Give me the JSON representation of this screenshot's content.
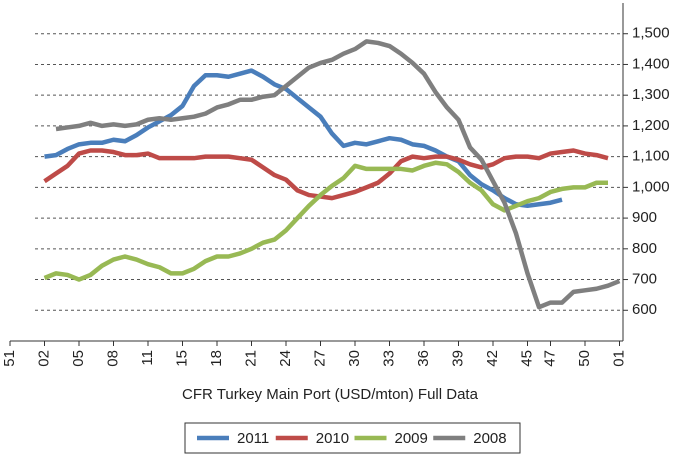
{
  "chart_data": {
    "type": "line",
    "x_label": "CFR Turkey Main Port (USD/mton) Full Data",
    "categories": [
      "51",
      null,
      null,
      "02",
      null,
      null,
      "05",
      null,
      null,
      "08",
      null,
      null,
      "11",
      null,
      null,
      "15",
      null,
      null,
      "18",
      null,
      null,
      "21",
      null,
      null,
      "24",
      null,
      null,
      "27",
      null,
      null,
      "30",
      null,
      null,
      "33",
      null,
      null,
      "36",
      null,
      null,
      "39",
      null,
      null,
      "42",
      null,
      null,
      "45",
      null,
      "47",
      null,
      null,
      "50",
      null,
      null,
      "01"
    ],
    "series": [
      {
        "name": "2011",
        "color": "#4a7ebb",
        "values": [
          null,
          null,
          null,
          1100,
          1105,
          1125,
          1140,
          1145,
          1145,
          1155,
          1150,
          1170,
          1195,
          1215,
          1235,
          1265,
          1330,
          1365,
          1365,
          1360,
          1370,
          1380,
          1360,
          1335,
          1320,
          1290,
          1260,
          1230,
          1175,
          1135,
          1145,
          1140,
          1150,
          1160,
          1155,
          1140,
          1135,
          1120,
          1100,
          1085,
          1040,
          1010,
          990,
          965,
          945,
          940,
          945,
          950,
          960,
          null,
          null,
          null,
          null,
          null
        ]
      },
      {
        "name": "2010",
        "color": "#be4b48",
        "values": [
          null,
          null,
          null,
          1020,
          1045,
          1070,
          1110,
          1120,
          1120,
          1115,
          1105,
          1105,
          1110,
          1095,
          1095,
          1095,
          1095,
          1100,
          1100,
          1100,
          1095,
          1090,
          1065,
          1040,
          1025,
          990,
          975,
          970,
          965,
          975,
          985,
          1000,
          1015,
          1045,
          1085,
          1100,
          1095,
          1100,
          1100,
          1090,
          1075,
          1065,
          1075,
          1095,
          1100,
          1100,
          1095,
          1110,
          1115,
          1120,
          1110,
          1105,
          1095,
          null
        ]
      },
      {
        "name": "2009",
        "color": "#98b954",
        "values": [
          null,
          null,
          null,
          705,
          720,
          715,
          700,
          715,
          745,
          765,
          775,
          765,
          750,
          740,
          720,
          720,
          735,
          760,
          775,
          775,
          785,
          800,
          820,
          830,
          860,
          900,
          940,
          975,
          1005,
          1030,
          1070,
          1060,
          1060,
          1060,
          1060,
          1055,
          1070,
          1080,
          1075,
          1050,
          1015,
          990,
          945,
          925,
          940,
          955,
          965,
          985,
          995,
          1000,
          1000,
          1015,
          1015,
          null
        ]
      },
      {
        "name": "2008",
        "color": "#7f7f7f",
        "values": [
          null,
          null,
          null,
          null,
          1190,
          1195,
          1200,
          1210,
          1200,
          1205,
          1200,
          1205,
          1220,
          1225,
          1220,
          1225,
          1230,
          1240,
          1260,
          1270,
          1285,
          1285,
          1295,
          1300,
          1330,
          1360,
          1390,
          1405,
          1415,
          1435,
          1450,
          1475,
          1470,
          1460,
          1435,
          1405,
          1370,
          1310,
          1260,
          1220,
          1130,
          1090,
          1020,
          950,
          850,
          720,
          610,
          625,
          625,
          660,
          665,
          670,
          680,
          695
        ]
      }
    ],
    "ylim": [
      500,
      1600
    ],
    "yticks": [
      600,
      700,
      800,
      900,
      {
        "value": 1000,
        "label": "1,000"
      },
      {
        "value": 1100,
        "label": "1,100"
      },
      {
        "value": 1200,
        "label": "1,200"
      },
      {
        "value": 1300,
        "label": "1,300"
      },
      {
        "value": 1400,
        "label": "1,400"
      },
      {
        "value": 1500,
        "label": "1,500"
      }
    ],
    "y_axis_side": "right",
    "grid": true,
    "legend": "bottom"
  }
}
